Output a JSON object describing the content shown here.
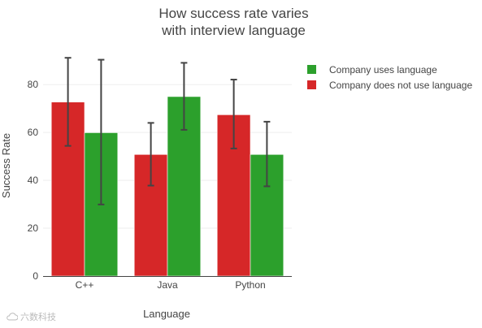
{
  "title_line1": "How success rate varies",
  "title_line2": "with interview language",
  "watermark": "六数科技",
  "chart_data": {
    "type": "bar",
    "title": "How success rate varies with interview language",
    "xlabel": "Language",
    "ylabel": "Success Rate",
    "categories": [
      "C++",
      "Java",
      "Python"
    ],
    "ylim": [
      0,
      95
    ],
    "yticks": [
      0,
      20,
      40,
      60,
      80
    ],
    "grid": true,
    "legend_position": "top-right",
    "series": [
      {
        "name": "Company does not use language",
        "color": "#d62728",
        "values": [
          72.7,
          50.8,
          67.4
        ],
        "error_low": [
          54.4,
          37.8,
          53.3
        ],
        "error_high": [
          91.2,
          64.0,
          82.1
        ]
      },
      {
        "name": "Company uses language",
        "color": "#2ca02c",
        "values": [
          59.9,
          75.0,
          50.8
        ],
        "error_low": [
          29.9,
          61.1,
          37.5
        ],
        "error_high": [
          90.4,
          89.1,
          64.5
        ]
      }
    ],
    "legend_order": [
      1,
      0
    ]
  }
}
